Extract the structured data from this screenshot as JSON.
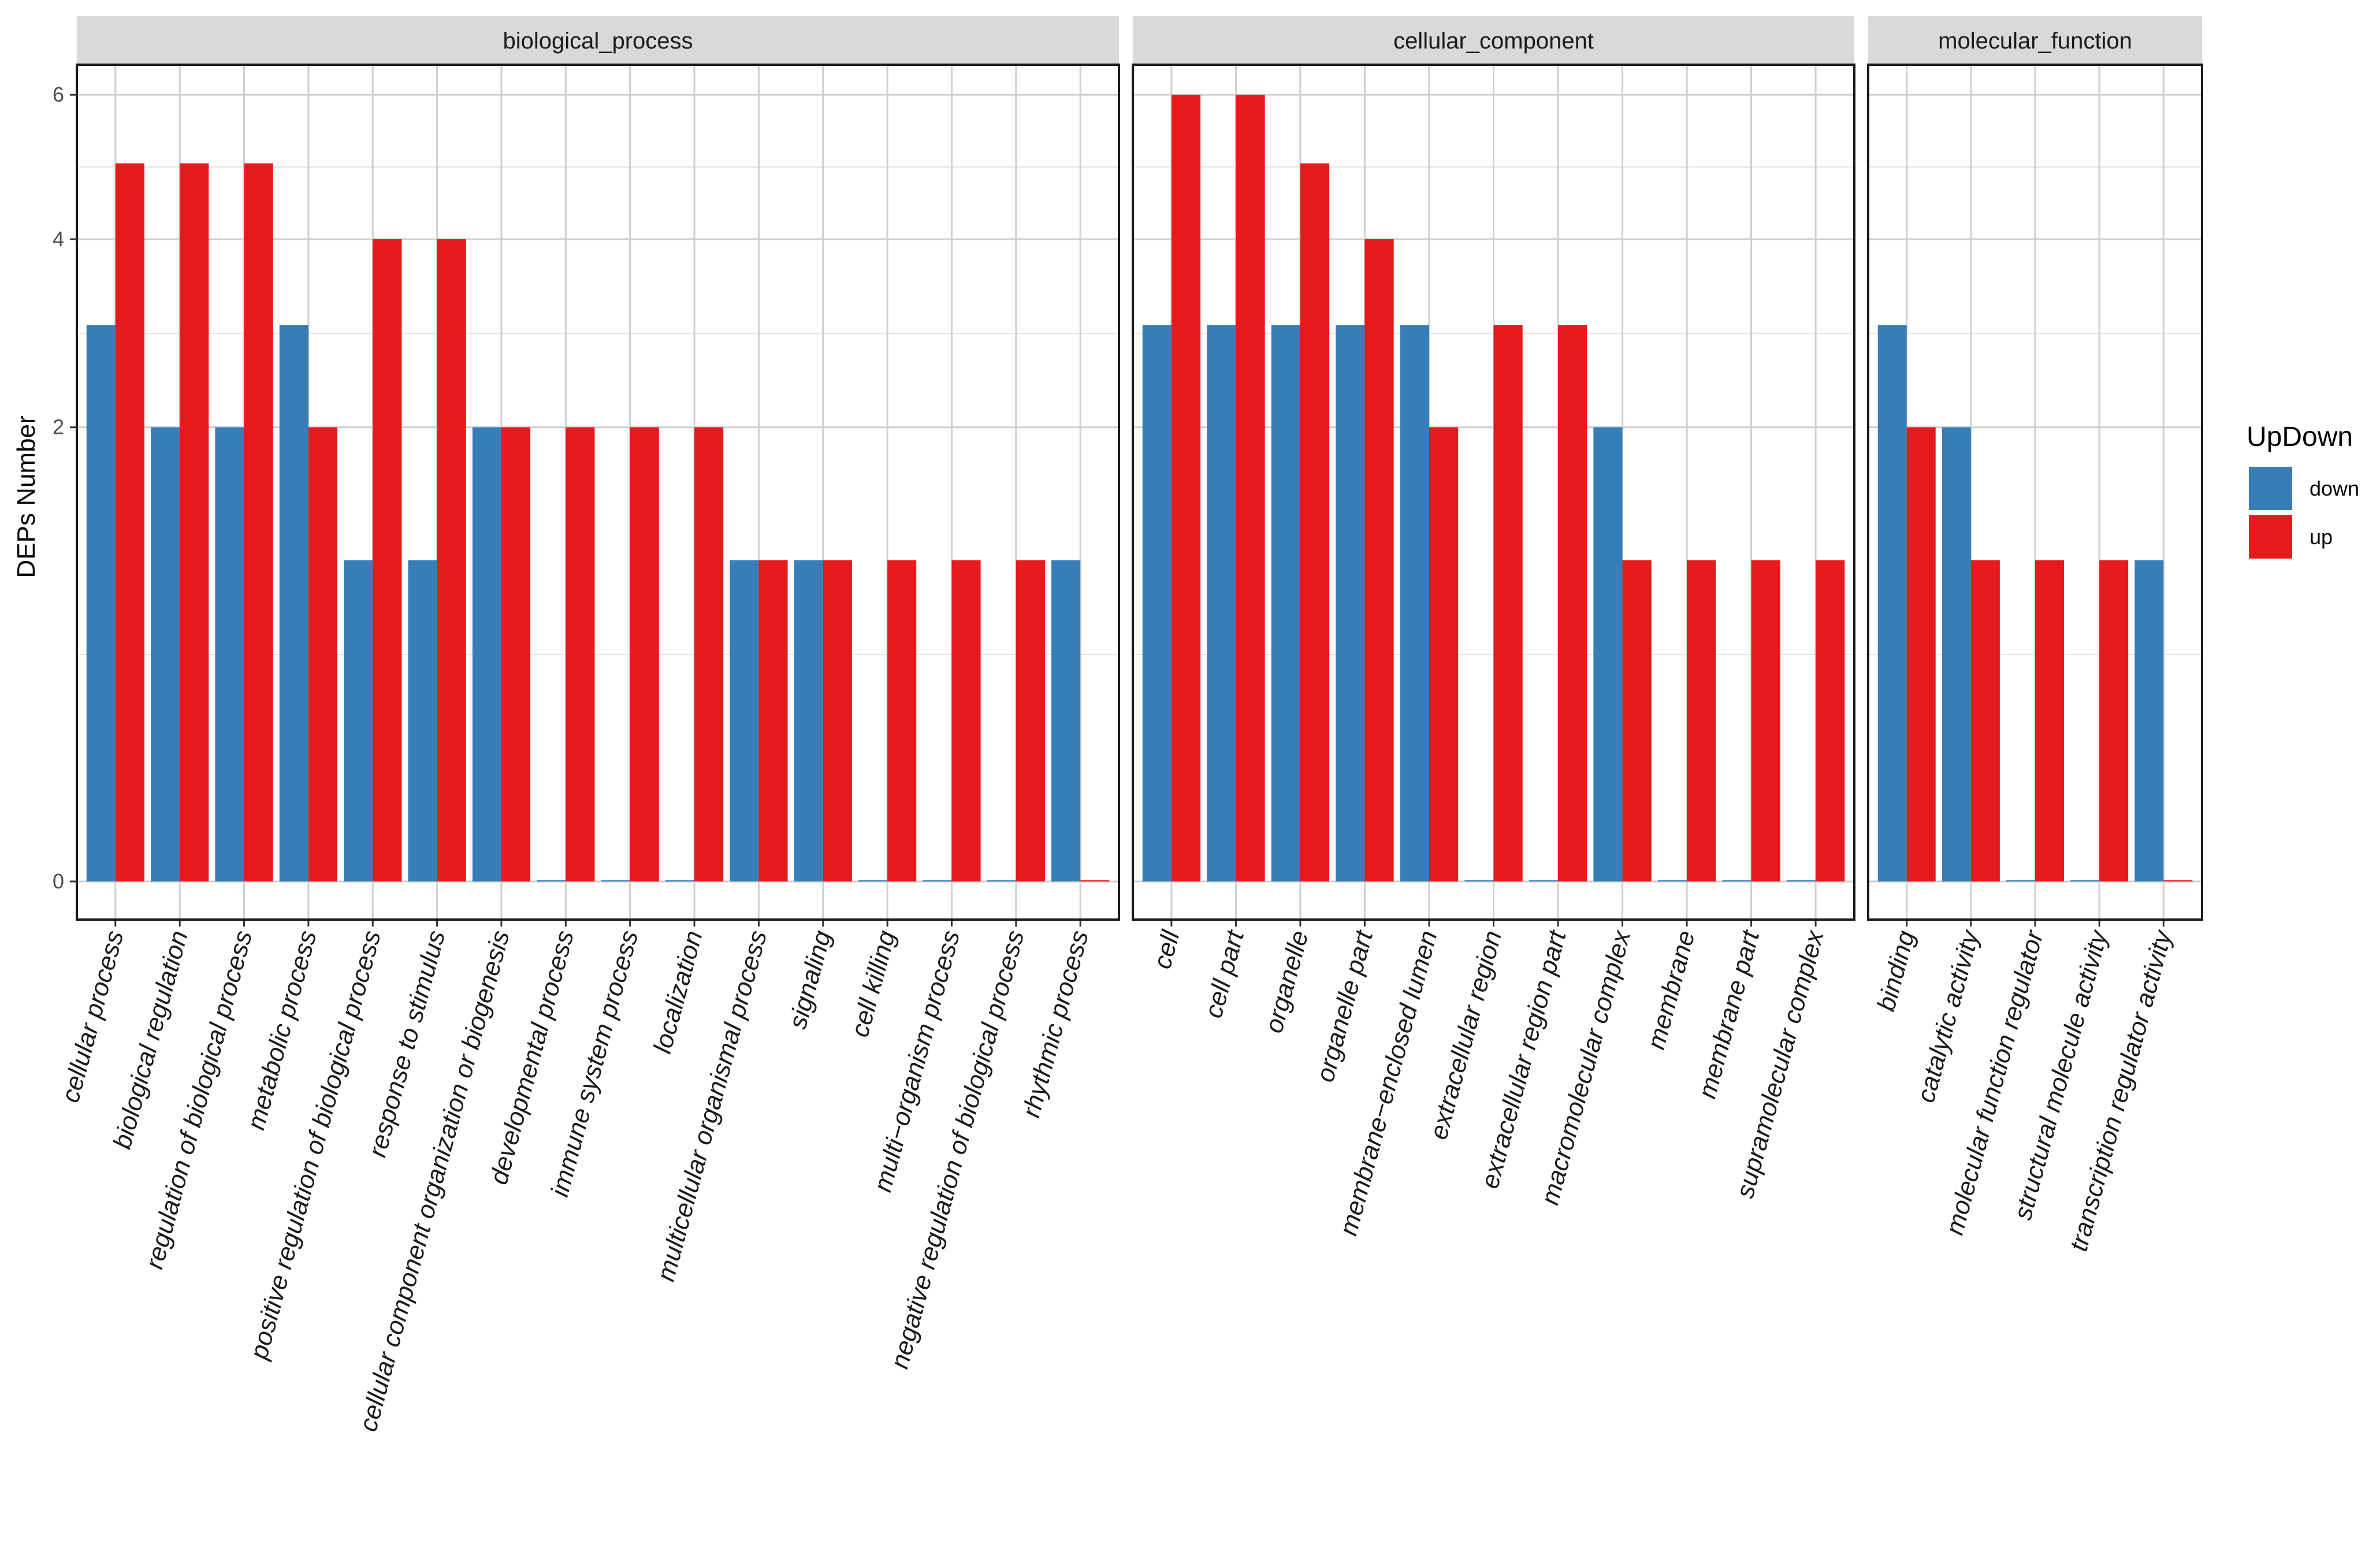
{
  "chart_data": {
    "type": "bar",
    "ylabel": "DEPs Number",
    "yscale": "sqrt",
    "yticks": [
      0,
      2,
      4,
      6
    ],
    "ylim": [
      0,
      6.45
    ],
    "colors": {
      "down": "#377eb8",
      "up": "#e41a1c"
    },
    "legend": {
      "title": "UpDown",
      "labels": [
        "down",
        "up"
      ],
      "position": "right"
    },
    "panels": [
      {
        "name": "biological_process",
        "categories": [
          "cellular process",
          "biological regulation",
          "regulation of biological process",
          "metabolic process",
          "positive regulation of biological process",
          "response to stimulus",
          "cellular component organization or biogenesis",
          "developmental process",
          "immune system process",
          "localization",
          "multicellular organismal process",
          "signaling",
          "cell killing",
          "multi−organism process",
          "negative regulation of biological process",
          "rhythmic process"
        ],
        "series": [
          {
            "name": "down",
            "values": [
              3,
              2,
              2,
              3,
              1,
              1,
              2,
              0,
              0,
              0,
              1,
              1,
              0,
              0,
              0,
              1
            ]
          },
          {
            "name": "up",
            "values": [
              5,
              5,
              5,
              2,
              4,
              4,
              2,
              2,
              2,
              2,
              1,
              1,
              1,
              1,
              1,
              0
            ]
          }
        ]
      },
      {
        "name": "cellular_component",
        "categories": [
          "cell",
          "cell part",
          "organelle",
          "organelle part",
          "membrane−enclosed lumen",
          "extracellular region",
          "extracellular region part",
          "macromolecular complex",
          "membrane",
          "membrane part",
          "supramolecular complex"
        ],
        "series": [
          {
            "name": "down",
            "values": [
              3,
              3,
              3,
              3,
              3,
              0,
              0,
              2,
              0,
              0,
              0
            ]
          },
          {
            "name": "up",
            "values": [
              6,
              6,
              5,
              4,
              2,
              3,
              3,
              1,
              1,
              1,
              1
            ]
          }
        ]
      },
      {
        "name": "molecular_function",
        "categories": [
          "binding",
          "catalytic activity",
          "molecular function regulator",
          "structural molecule activity",
          "transcription regulator activity"
        ],
        "series": [
          {
            "name": "down",
            "values": [
              3,
              2,
              0,
              0,
              1
            ]
          },
          {
            "name": "up",
            "values": [
              2,
              1,
              1,
              1,
              0
            ]
          }
        ]
      }
    ]
  }
}
